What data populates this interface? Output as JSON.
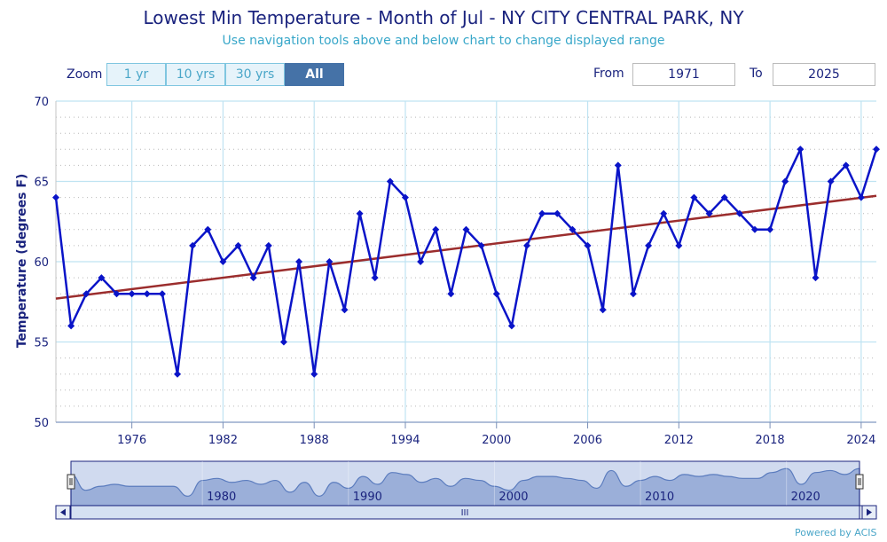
{
  "header": {
    "title": "Lowest Min Temperature - Month of Jul - NY CITY CENTRAL PARK, NY",
    "subtitle": "Use navigation tools above and below chart to change displayed range"
  },
  "zoom": {
    "label": "Zoom",
    "buttons": [
      "1 yr",
      "10 yrs",
      "30 yrs",
      "All"
    ],
    "active": "All"
  },
  "range": {
    "from_label": "From",
    "from_value": "1971",
    "to_label": "To",
    "to_value": "2025"
  },
  "credit": "Powered by ACIS",
  "colors": {
    "series": "#0a14c8",
    "trend": "#9b2d2d",
    "grid": "#bfe3f2",
    "axis_text": "#1a237e",
    "navigator_fill": "#4c6fb4"
  },
  "navigator": {
    "labels": [
      "1980",
      "1990",
      "2000",
      "2010",
      "2020"
    ],
    "scrollbar_grip": "III"
  },
  "chart_data": {
    "type": "line",
    "title": "Lowest Min Temperature - Month of Jul - NY CITY CENTRAL PARK, NY",
    "subtitle": "Use navigation tools above and below chart to change displayed range",
    "xlabel": "",
    "ylabel": "Temperature (degrees F)",
    "ylim": [
      50,
      70
    ],
    "xlim": [
      1971,
      2025
    ],
    "yticks": [
      50,
      55,
      60,
      65,
      70
    ],
    "xticks": [
      1976,
      1982,
      1988,
      1994,
      2000,
      2006,
      2012,
      2018,
      2024
    ],
    "grid": true,
    "legend": "none",
    "x": [
      1971,
      1972,
      1973,
      1974,
      1975,
      1976,
      1977,
      1978,
      1979,
      1980,
      1981,
      1982,
      1983,
      1984,
      1985,
      1986,
      1987,
      1988,
      1989,
      1990,
      1991,
      1992,
      1993,
      1994,
      1995,
      1996,
      1997,
      1998,
      1999,
      2000,
      2001,
      2002,
      2003,
      2004,
      2005,
      2006,
      2007,
      2008,
      2009,
      2010,
      2011,
      2012,
      2013,
      2014,
      2015,
      2016,
      2017,
      2018,
      2019,
      2020,
      2021,
      2022,
      2023,
      2024,
      2025
    ],
    "series": [
      {
        "values": [
          64,
          56,
          58,
          59,
          58,
          58,
          58,
          58,
          53,
          61,
          62,
          60,
          61,
          59,
          61,
          55,
          60,
          53,
          60,
          57,
          63,
          59,
          65,
          64,
          60,
          62,
          58,
          62,
          61,
          58,
          56,
          61,
          63,
          63,
          62,
          61,
          57,
          66,
          58,
          61,
          63,
          61,
          64,
          63,
          64,
          63,
          62,
          62,
          65,
          67,
          59,
          65,
          66,
          64,
          67
        ]
      }
    ],
    "trendline": {
      "start": [
        1971,
        57.7
      ],
      "end": [
        2025,
        64.1
      ]
    }
  }
}
